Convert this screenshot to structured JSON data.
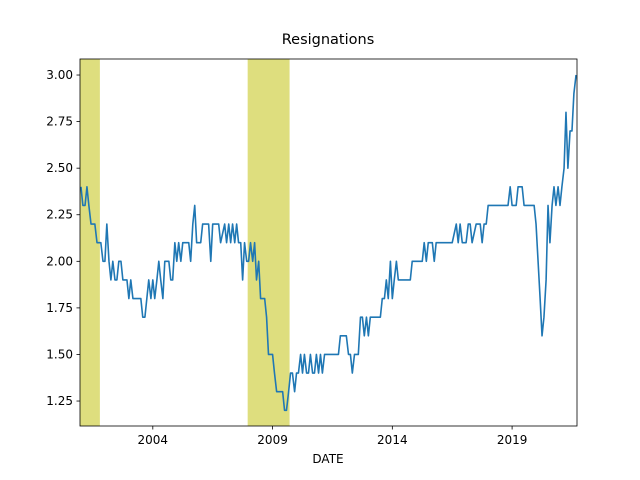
{
  "chart_data": {
    "type": "line",
    "title": "Resignations",
    "xlabel": "DATE",
    "xlim": [
      2000.96,
      2021.71
    ],
    "xticks": [
      2004,
      2009,
      2014,
      2019
    ],
    "ylim": [
      1.116,
      3.086
    ],
    "yticks": [
      {
        "value": 1.25,
        "label": "1.25"
      },
      {
        "value": 1.5,
        "label": "1.50"
      },
      {
        "value": 1.75,
        "label": "1.75"
      },
      {
        "value": 2.0,
        "label": "2.00"
      },
      {
        "value": 2.25,
        "label": "2.25"
      },
      {
        "value": 2.5,
        "label": "2.50"
      },
      {
        "value": 2.75,
        "label": "2.75"
      },
      {
        "value": 3.0,
        "label": "3.00"
      }
    ],
    "shaded_regions": [
      [
        2000.96,
        2001.79
      ],
      [
        2007.96,
        2009.71
      ]
    ],
    "shade_color": "#dede7e",
    "x": [
      2001.0,
      2001.08,
      2001.17,
      2001.25,
      2001.33,
      2001.42,
      2001.58,
      2001.67,
      2001.83,
      2001.92,
      2002.0,
      2002.08,
      2002.17,
      2002.25,
      2002.33,
      2002.42,
      2002.5,
      2002.58,
      2002.67,
      2002.75,
      2002.92,
      2003.0,
      2003.08,
      2003.17,
      2003.5,
      2003.58,
      2003.67,
      2003.75,
      2003.83,
      2003.92,
      2004.0,
      2004.08,
      2004.17,
      2004.25,
      2004.33,
      2004.42,
      2004.5,
      2004.67,
      2004.75,
      2004.83,
      2004.92,
      2005.0,
      2005.08,
      2005.17,
      2005.25,
      2005.5,
      2005.58,
      2005.67,
      2005.75,
      2005.83,
      2006.0,
      2006.08,
      2006.33,
      2006.42,
      2006.5,
      2006.75,
      2006.83,
      2007.0,
      2007.08,
      2007.17,
      2007.25,
      2007.33,
      2007.42,
      2007.5,
      2007.58,
      2007.67,
      2007.75,
      2007.83,
      2007.92,
      2008.0,
      2008.08,
      2008.17,
      2008.25,
      2008.33,
      2008.42,
      2008.5,
      2008.67,
      2008.75,
      2008.83,
      2009.0,
      2009.08,
      2009.17,
      2009.42,
      2009.5,
      2009.58,
      2009.67,
      2009.75,
      2009.83,
      2009.92,
      2010.0,
      2010.08,
      2010.17,
      2010.25,
      2010.33,
      2010.42,
      2010.5,
      2010.58,
      2010.67,
      2010.75,
      2010.83,
      2010.92,
      2011.0,
      2011.08,
      2011.17,
      2011.75,
      2011.83,
      2012.08,
      2012.17,
      2012.25,
      2012.33,
      2012.42,
      2012.58,
      2012.67,
      2012.75,
      2012.83,
      2012.92,
      2013.0,
      2013.08,
      2013.5,
      2013.58,
      2013.67,
      2013.75,
      2013.83,
      2013.92,
      2014.0,
      2014.08,
      2014.17,
      2014.25,
      2014.5,
      2014.75,
      2014.83,
      2015.25,
      2015.33,
      2015.42,
      2015.5,
      2015.67,
      2015.75,
      2015.83,
      2016.5,
      2016.67,
      2016.75,
      2016.83,
      2016.92,
      2017.08,
      2017.17,
      2017.25,
      2017.33,
      2017.5,
      2017.67,
      2017.75,
      2017.83,
      2017.92,
      2018.0,
      2018.83,
      2018.92,
      2019.0,
      2019.17,
      2019.25,
      2019.42,
      2019.5,
      2019.92,
      2020.0,
      2020.17,
      2020.25,
      2020.33,
      2020.42,
      2020.5,
      2020.58,
      2020.67,
      2020.75,
      2020.83,
      2020.92,
      2021.0,
      2021.08,
      2021.17,
      2021.25,
      2021.33,
      2021.42,
      2021.5,
      2021.58,
      2021.67
    ],
    "series": [
      {
        "name": "Resignations",
        "color": "#1f77b4",
        "values": [
          2.4,
          2.3,
          2.3,
          2.4,
          2.3,
          2.2,
          2.2,
          2.1,
          2.1,
          2.0,
          2.0,
          2.2,
          2.0,
          1.9,
          2.0,
          1.9,
          1.9,
          2.0,
          2.0,
          1.9,
          1.9,
          1.8,
          1.9,
          1.8,
          1.8,
          1.7,
          1.7,
          1.8,
          1.9,
          1.8,
          1.9,
          1.8,
          1.9,
          2.0,
          1.9,
          1.8,
          2.0,
          2.0,
          1.9,
          1.9,
          2.1,
          2.0,
          2.1,
          2.0,
          2.1,
          2.1,
          2.0,
          2.2,
          2.3,
          2.1,
          2.1,
          2.2,
          2.2,
          2.0,
          2.2,
          2.2,
          2.1,
          2.2,
          2.1,
          2.2,
          2.1,
          2.2,
          2.1,
          2.2,
          2.1,
          2.1,
          1.9,
          2.1,
          2.0,
          2.0,
          2.1,
          2.0,
          2.1,
          1.9,
          2.0,
          1.8,
          1.8,
          1.7,
          1.5,
          1.5,
          1.4,
          1.3,
          1.3,
          1.2,
          1.2,
          1.3,
          1.4,
          1.4,
          1.3,
          1.4,
          1.4,
          1.5,
          1.4,
          1.5,
          1.4,
          1.4,
          1.5,
          1.4,
          1.4,
          1.5,
          1.4,
          1.5,
          1.4,
          1.5,
          1.5,
          1.6,
          1.6,
          1.5,
          1.5,
          1.4,
          1.5,
          1.5,
          1.7,
          1.7,
          1.6,
          1.7,
          1.6,
          1.7,
          1.7,
          1.8,
          1.8,
          1.9,
          1.8,
          2.0,
          1.8,
          1.9,
          2.0,
          1.9,
          1.9,
          1.9,
          2.0,
          2.0,
          2.1,
          2.0,
          2.1,
          2.1,
          2.0,
          2.1,
          2.1,
          2.2,
          2.1,
          2.2,
          2.1,
          2.1,
          2.2,
          2.2,
          2.1,
          2.2,
          2.2,
          2.1,
          2.2,
          2.2,
          2.3,
          2.3,
          2.4,
          2.3,
          2.3,
          2.4,
          2.4,
          2.3,
          2.3,
          2.2,
          1.8,
          1.6,
          1.7,
          1.9,
          2.3,
          2.1,
          2.3,
          2.4,
          2.3,
          2.4,
          2.3,
          2.4,
          2.5,
          2.8,
          2.5,
          2.7,
          2.7,
          2.9,
          3.0
        ]
      }
    ]
  }
}
